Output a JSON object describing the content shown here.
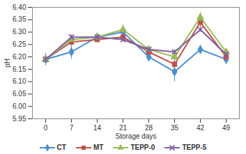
{
  "chart_data": {
    "type": "line",
    "x_label": "Storage days",
    "y_label": "pH",
    "categories": [
      "0",
      "7",
      "14",
      "21",
      "28",
      "35",
      "42",
      "49"
    ],
    "ylim": [
      5.95,
      6.4
    ],
    "yticks": [
      5.95,
      {
        "value": 6.0,
        "label": "6.00"
      },
      6.05,
      {
        "value": 6.1,
        "label": "6.10"
      },
      6.15,
      {
        "value": 6.2,
        "label": "6.20"
      },
      6.25,
      {
        "value": 6.3,
        "label": "6.30"
      },
      6.35,
      {
        "value": 6.4,
        "label": "6.40"
      }
    ],
    "grid": false,
    "legend": "bottom",
    "series": [
      {
        "name": "CT",
        "color": "#4a8fd0",
        "marker": "diamond",
        "values": [
          6.19,
          6.22,
          6.28,
          6.3,
          6.2,
          6.14,
          6.23,
          6.19
        ],
        "errors": [
          0.025,
          0.03,
          0.01,
          0.01,
          0.02,
          0.04,
          0.01,
          0.01
        ]
      },
      {
        "name": "MT",
        "color": "#c0504d",
        "marker": "square",
        "values": [
          6.19,
          6.26,
          6.27,
          6.28,
          6.22,
          6.17,
          6.34,
          6.2
        ],
        "errors": [
          0.01,
          0.01,
          0.01,
          0.01,
          0.01,
          0.02,
          0.02,
          0.01
        ]
      },
      {
        "name": "TEPP-0",
        "color": "#9bbb59",
        "marker": "triangle",
        "values": [
          6.19,
          6.27,
          6.28,
          6.31,
          6.23,
          6.2,
          6.36,
          6.22
        ],
        "errors": [
          0.01,
          0.01,
          0.01,
          0.02,
          0.01,
          0.01,
          0.02,
          0.01
        ]
      },
      {
        "name": "TEPP-5",
        "color": "#7f5fa0",
        "marker": "x",
        "values": [
          6.19,
          6.28,
          6.28,
          6.27,
          6.23,
          6.22,
          6.31,
          6.21
        ],
        "errors": [
          0.01,
          0.01,
          0.01,
          0.01,
          0.01,
          0.01,
          0.01,
          0.01
        ]
      }
    ]
  }
}
